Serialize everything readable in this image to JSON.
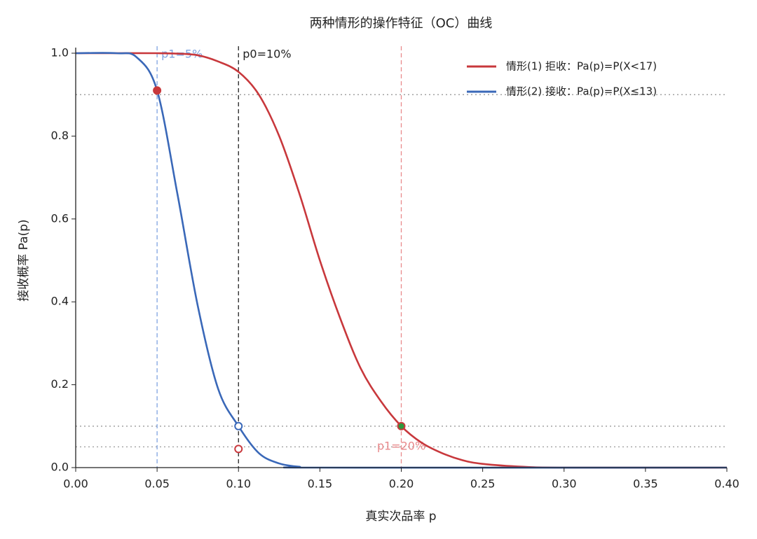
{
  "chart_data": {
    "type": "line",
    "title": "两种情形的操作特征（OC）曲线",
    "xlabel": "真实次品率 p",
    "ylabel": "接收概率 Pa(p)",
    "xlim": [
      0,
      0.4
    ],
    "ylim": [
      0,
      1
    ],
    "xticks": [
      {
        "value": 0,
        "label": "0.00"
      },
      0.05,
      {
        "value": 0.1,
        "label": "0.10"
      },
      0.15,
      {
        "value": 0.2,
        "label": "0.20"
      },
      0.25,
      {
        "value": 0.3,
        "label": "0.30"
      },
      0.35,
      {
        "value": 0.4,
        "label": "0.40"
      }
    ],
    "yticks": [
      {
        "value": 0,
        "label": "0.0"
      },
      0.2,
      0.4,
      0.6,
      0.8,
      {
        "value": 1,
        "label": "1.0"
      }
    ],
    "legend": "upper right",
    "series": [
      {
        "name": "情形(1) 拒收：Pa(p)=P(X<17)",
        "color": "#c8383c",
        "x": [
          0,
          0.025,
          0.05,
          0.0625,
          0.075,
          0.0875,
          0.1,
          0.1125,
          0.125,
          0.1375,
          0.15,
          0.1625,
          0.175,
          0.1875,
          0.2,
          0.2125,
          0.225,
          0.2375,
          0.25,
          0.275,
          0.3,
          0.4
        ],
        "values": [
          1,
          1,
          1,
          0.999,
          0.995,
          0.98,
          0.955,
          0.9,
          0.8,
          0.66,
          0.5,
          0.36,
          0.24,
          0.16,
          0.1,
          0.06,
          0.035,
          0.018,
          0.009,
          0.002,
          0,
          0
        ]
      },
      {
        "name": "情形(2) 接收：Pa(p)=P(X≤13)",
        "color": "#3a68b8",
        "x": [
          0,
          0.025,
          0.0375,
          0.05,
          0.0625,
          0.075,
          0.0875,
          0.1,
          0.1125,
          0.125,
          0.1375,
          0.15,
          0.4
        ],
        "values": [
          1,
          1,
          0.99,
          0.91,
          0.66,
          0.39,
          0.19,
          0.1,
          0.035,
          0.01,
          0.002,
          0,
          0
        ]
      }
    ],
    "vlines": [
      {
        "x": 0.05,
        "label": "p1=5%",
        "color": "#7fa3e0",
        "label_at": "top"
      },
      {
        "x": 0.1,
        "label": "p0=10%",
        "color": "#222222",
        "label_at": "top"
      },
      {
        "x": 0.2,
        "label": "p1=20%",
        "color": "#e88a8c",
        "label_at": "bottom"
      }
    ],
    "hlines": [
      0.9,
      0.1,
      0.05
    ],
    "points": [
      {
        "x": 0.05,
        "y": 0.91,
        "color": "#c8383c",
        "filled": true
      },
      {
        "x": 0.1,
        "y": 0.1,
        "color": "#3a68b8",
        "filled": false
      },
      {
        "x": 0.1,
        "y": 0.045,
        "color": "#c8383c",
        "filled": false
      },
      {
        "x": 0.2,
        "y": 0.1,
        "color": "#2e9a3e",
        "filled": true
      }
    ]
  }
}
